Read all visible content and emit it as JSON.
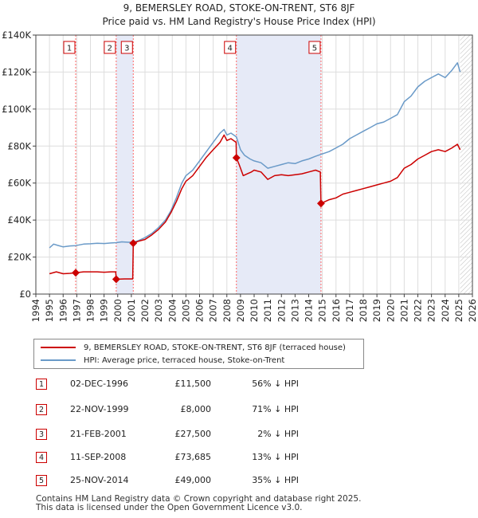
{
  "header": {
    "title": "9, BEMERSLEY ROAD, STOKE-ON-TRENT, ST6 8JF",
    "subtitle": "Price paid vs. HM Land Registry's House Price Index (HPI)"
  },
  "legend": {
    "property_label": "9, BEMERSLEY ROAD, STOKE-ON-TRENT, ST6 8JF (terraced house)",
    "hpi_label": "HPI: Average price, terraced house, Stoke-on-Trent"
  },
  "colors": {
    "property": "#cc0000",
    "hpi": "#6a9ac8",
    "sale_band": "#e6eaf7",
    "marker_line": "#ff6666",
    "future_hatch": "#cccccc"
  },
  "transactions": [
    {
      "num": "1",
      "date": "02-DEC-1996",
      "price": "£11,500",
      "hpi_diff": "56% ↓ HPI"
    },
    {
      "num": "2",
      "date": "22-NOV-1999",
      "price": "£8,000",
      "hpi_diff": "71% ↓ HPI"
    },
    {
      "num": "3",
      "date": "21-FEB-2001",
      "price": "£27,500",
      "hpi_diff": "2% ↓ HPI"
    },
    {
      "num": "4",
      "date": "11-SEP-2008",
      "price": "£73,685",
      "hpi_diff": "13% ↓ HPI"
    },
    {
      "num": "5",
      "date": "25-NOV-2014",
      "price": "£49,000",
      "hpi_diff": "35% ↓ HPI"
    }
  ],
  "footer": {
    "line1": "Contains HM Land Registry data © Crown copyright and database right 2025.",
    "line2": "This data is licensed under the Open Government Licence v3.0."
  },
  "chart_data": {
    "type": "line",
    "title": "9, BEMERSLEY ROAD, STOKE-ON-TRENT, ST6 8JF",
    "subtitle": "Price paid vs. HM Land Registry's House Price Index (HPI)",
    "xlabel": "",
    "ylabel": "",
    "xlim": [
      1994,
      2026
    ],
    "ylim": [
      0,
      140000
    ],
    "x_ticks": [
      1994,
      1995,
      1996,
      1997,
      1998,
      1999,
      2000,
      2001,
      2002,
      2003,
      2004,
      2005,
      2006,
      2007,
      2008,
      2009,
      2010,
      2011,
      2012,
      2013,
      2014,
      2015,
      2016,
      2017,
      2018,
      2019,
      2020,
      2021,
      2022,
      2023,
      2024,
      2025,
      2026
    ],
    "y_ticks": [
      {
        "value": 0,
        "label": "£0"
      },
      {
        "value": 20000,
        "label": "£20K"
      },
      {
        "value": 40000,
        "label": "£40K"
      },
      {
        "value": 60000,
        "label": "£60K"
      },
      {
        "value": 80000,
        "label": "£80K"
      },
      {
        "value": 100000,
        "label": "£100K"
      },
      {
        "value": 120000,
        "label": "£120K"
      },
      {
        "value": 140000,
        "label": "£140K"
      }
    ],
    "grid": true,
    "future_from": 2025.1,
    "sales": [
      {
        "label": "1",
        "x": 1996.92,
        "value": 11500
      },
      {
        "label": "2",
        "x": 1999.89,
        "value": 8000
      },
      {
        "label": "3",
        "x": 2001.14,
        "value": 27500
      },
      {
        "label": "4",
        "x": 2008.7,
        "value": 73685
      },
      {
        "label": "5",
        "x": 2014.9,
        "value": 49000
      }
    ],
    "series": [
      {
        "name": "HPI: Average price, terraced house, Stoke-on-Trent",
        "points": [
          [
            1995.0,
            25000
          ],
          [
            1995.3,
            27000
          ],
          [
            1995.6,
            26300
          ],
          [
            1996.0,
            25500
          ],
          [
            1996.5,
            26000
          ],
          [
            1996.92,
            26200
          ],
          [
            1997.5,
            27000
          ],
          [
            1998.0,
            27200
          ],
          [
            1998.5,
            27500
          ],
          [
            1999.0,
            27300
          ],
          [
            1999.5,
            27600
          ],
          [
            1999.89,
            27800
          ],
          [
            2000.3,
            28200
          ],
          [
            2000.8,
            28000
          ],
          [
            2001.14,
            28100
          ],
          [
            2001.5,
            28800
          ],
          [
            2002.0,
            30500
          ],
          [
            2002.5,
            32800
          ],
          [
            2003.0,
            36000
          ],
          [
            2003.5,
            40000
          ],
          [
            2003.9,
            45000
          ],
          [
            2004.3,
            52000
          ],
          [
            2004.7,
            60000
          ],
          [
            2005.0,
            64000
          ],
          [
            2005.5,
            67000
          ],
          [
            2006.0,
            72000
          ],
          [
            2006.5,
            77000
          ],
          [
            2007.0,
            82000
          ],
          [
            2007.5,
            87000
          ],
          [
            2007.8,
            89000
          ],
          [
            2008.0,
            86000
          ],
          [
            2008.3,
            87000
          ],
          [
            2008.7,
            85000
          ],
          [
            2009.0,
            78000
          ],
          [
            2009.3,
            75000
          ],
          [
            2009.7,
            73000
          ],
          [
            2010.0,
            72000
          ],
          [
            2010.5,
            71000
          ],
          [
            2011.0,
            68000
          ],
          [
            2011.5,
            69000
          ],
          [
            2012.0,
            70000
          ],
          [
            2012.5,
            71000
          ],
          [
            2013.0,
            70500
          ],
          [
            2013.5,
            72000
          ],
          [
            2014.0,
            73000
          ],
          [
            2014.5,
            74500
          ],
          [
            2014.9,
            75500
          ],
          [
            2015.5,
            77000
          ],
          [
            2016.0,
            79000
          ],
          [
            2016.5,
            81000
          ],
          [
            2017.0,
            84000
          ],
          [
            2017.5,
            86000
          ],
          [
            2018.0,
            88000
          ],
          [
            2018.5,
            90000
          ],
          [
            2019.0,
            92000
          ],
          [
            2019.5,
            93000
          ],
          [
            2020.0,
            95000
          ],
          [
            2020.5,
            97000
          ],
          [
            2021.0,
            104000
          ],
          [
            2021.5,
            107000
          ],
          [
            2022.0,
            112000
          ],
          [
            2022.5,
            115000
          ],
          [
            2023.0,
            117000
          ],
          [
            2023.5,
            119000
          ],
          [
            2024.0,
            117000
          ],
          [
            2024.5,
            121000
          ],
          [
            2024.9,
            125000
          ],
          [
            2025.1,
            120000
          ]
        ]
      },
      {
        "name": "9, BEMERSLEY ROAD, STOKE-ON-TRENT, ST6 8JF (terraced house)",
        "points": [
          [
            1995.0,
            11000
          ],
          [
            1995.5,
            12000
          ],
          [
            1996.0,
            11000
          ],
          [
            1996.5,
            11200
          ],
          [
            1996.92,
            11500
          ],
          [
            1997.5,
            12000
          ],
          [
            1998.0,
            12000
          ],
          [
            1998.5,
            12000
          ],
          [
            1999.0,
            11800
          ],
          [
            1999.5,
            12000
          ],
          [
            1999.85,
            12000
          ],
          [
            1999.89,
            8000
          ],
          [
            2000.5,
            8200
          ],
          [
            2001.0,
            8200
          ],
          [
            2001.1,
            8200
          ],
          [
            2001.14,
            27500
          ],
          [
            2001.5,
            28500
          ],
          [
            2002.0,
            29500
          ],
          [
            2002.5,
            32000
          ],
          [
            2003.0,
            35000
          ],
          [
            2003.5,
            39000
          ],
          [
            2003.9,
            44000
          ],
          [
            2004.3,
            50000
          ],
          [
            2004.7,
            57000
          ],
          [
            2005.0,
            61000
          ],
          [
            2005.5,
            64000
          ],
          [
            2006.0,
            69000
          ],
          [
            2006.5,
            74000
          ],
          [
            2007.0,
            78000
          ],
          [
            2007.5,
            82000
          ],
          [
            2007.8,
            86000
          ],
          [
            2008.0,
            83000
          ],
          [
            2008.3,
            84000
          ],
          [
            2008.68,
            82000
          ],
          [
            2008.7,
            73685
          ],
          [
            2008.9,
            70000
          ],
          [
            2009.2,
            64000
          ],
          [
            2009.5,
            65000
          ],
          [
            2009.8,
            66000
          ],
          [
            2010.0,
            67000
          ],
          [
            2010.5,
            66000
          ],
          [
            2011.0,
            62000
          ],
          [
            2011.5,
            64000
          ],
          [
            2012.0,
            64500
          ],
          [
            2012.5,
            64000
          ],
          [
            2013.0,
            64500
          ],
          [
            2013.5,
            65000
          ],
          [
            2014.0,
            66000
          ],
          [
            2014.5,
            67000
          ],
          [
            2014.85,
            66000
          ],
          [
            2014.9,
            49000
          ],
          [
            2015.5,
            51000
          ],
          [
            2016.0,
            52000
          ],
          [
            2016.5,
            54000
          ],
          [
            2017.0,
            55000
          ],
          [
            2017.5,
            56000
          ],
          [
            2018.0,
            57000
          ],
          [
            2018.5,
            58000
          ],
          [
            2019.0,
            59000
          ],
          [
            2019.5,
            60000
          ],
          [
            2020.0,
            61000
          ],
          [
            2020.5,
            63000
          ],
          [
            2021.0,
            68000
          ],
          [
            2021.5,
            70000
          ],
          [
            2022.0,
            73000
          ],
          [
            2022.5,
            75000
          ],
          [
            2023.0,
            77000
          ],
          [
            2023.5,
            78000
          ],
          [
            2024.0,
            77000
          ],
          [
            2024.5,
            79000
          ],
          [
            2024.9,
            81000
          ],
          [
            2025.1,
            78000
          ]
        ]
      }
    ]
  }
}
